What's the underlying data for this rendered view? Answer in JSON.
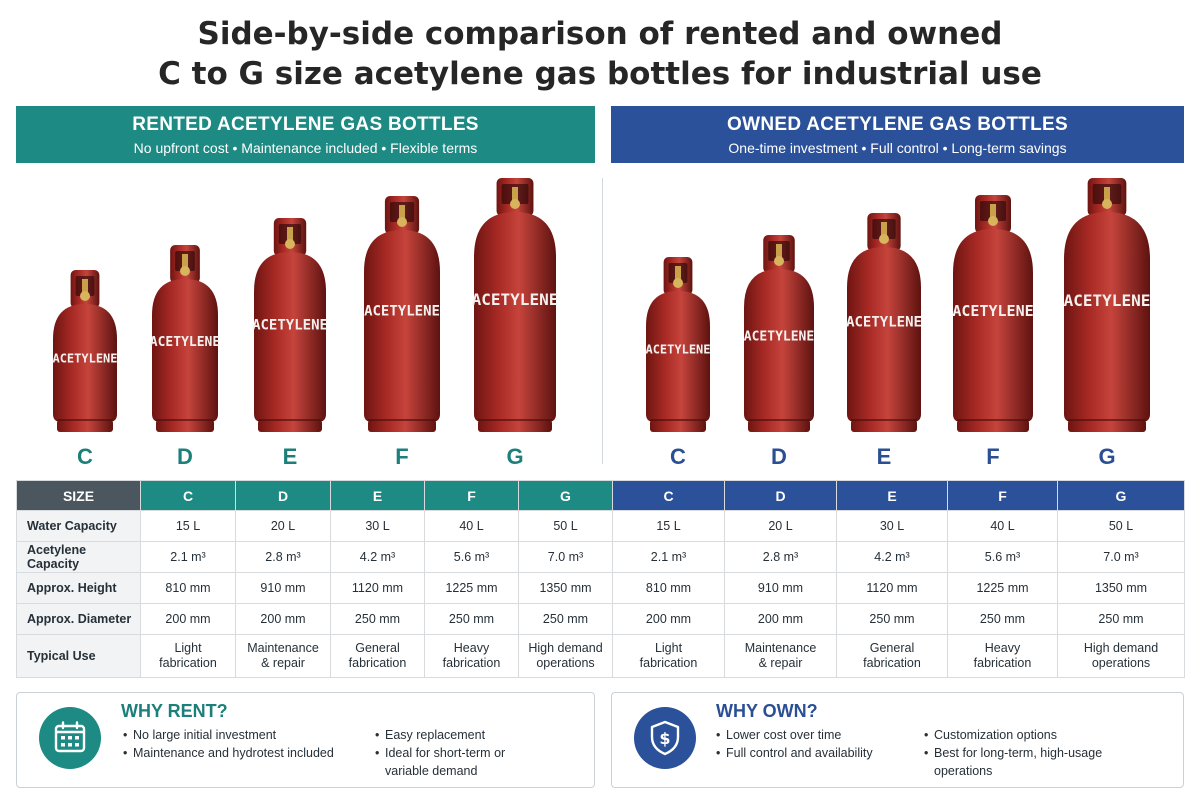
{
  "title_line1": "Side-by-side comparison of rented and owned",
  "title_line2": "C to G size acetylene gas bottles for industrial use",
  "rent_banner": {
    "title": "RENTED ACETYLENE GAS BOTTLES",
    "subtitle": "No upfront cost  •  Maintenance included  •  Flexible terms"
  },
  "own_banner": {
    "title": "OWNED ACETYLENE GAS BOTTLES",
    "subtitle": "One-time investment  •  Full control  •  Long-term savings"
  },
  "bottle_label": "ACETYLENE",
  "bottle_color": "#a92a25",
  "sizes": [
    "C",
    "D",
    "E",
    "F",
    "G"
  ],
  "table": {
    "header_label": "SIZE",
    "rows": [
      {
        "label": "Water Capacity",
        "values": [
          "15 L",
          "20 L",
          "30 L",
          "40 L",
          "50 L"
        ]
      },
      {
        "label": "Acetylene Capacity",
        "values": [
          "2.1 m³",
          "2.8 m³",
          "4.2 m³",
          "5.6 m³",
          "7.0 m³"
        ]
      },
      {
        "label": "Approx. Height",
        "values": [
          "810 mm",
          "910 mm",
          "1120 mm",
          "1225 mm",
          "1350 mm"
        ]
      },
      {
        "label": "Approx. Diameter",
        "values": [
          "200 mm",
          "200 mm",
          "250 mm",
          "250 mm",
          "250 mm"
        ]
      },
      {
        "label": "Typical Use",
        "values": [
          [
            "Light",
            "fabrication"
          ],
          [
            "Maintenance",
            "& repair"
          ],
          [
            "General",
            "fabrication"
          ],
          [
            "Heavy",
            "fabrication"
          ],
          [
            "High demand",
            "operations"
          ]
        ]
      }
    ]
  },
  "why_rent": {
    "title": "WHY RENT?",
    "icon": "calendar-icon",
    "col1": [
      "No large initial investment",
      "Maintenance and hydrotest included"
    ],
    "col2": [
      "Easy replacement",
      "Ideal for short-term or variable demand"
    ]
  },
  "why_own": {
    "title": "WHY OWN?",
    "icon": "shield-dollar-icon",
    "col1": [
      "Lower cost over time",
      "Full control and availability"
    ],
    "col2": [
      "Customization options",
      "Best for long-term, high-usage operations"
    ]
  },
  "colors": {
    "rent": "#1d8a84",
    "own": "#2a5199",
    "bottle": "#a92a25"
  }
}
